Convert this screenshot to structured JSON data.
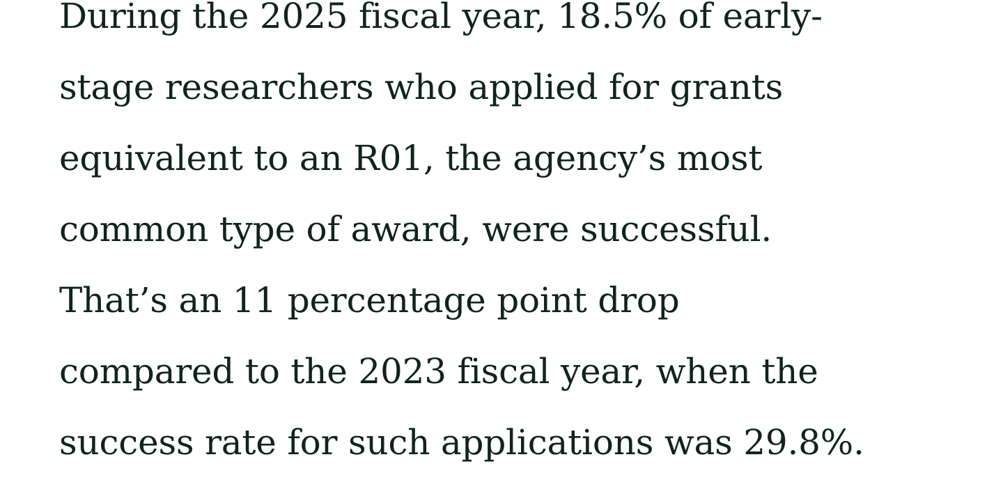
{
  "page": {
    "background_color": "#ffffff",
    "text_color": "#0f241e"
  },
  "article": {
    "paragraph_lines": [
      "During the 2025 fiscal year, 18.5% of early-",
      "stage researchers who applied for grants",
      "equivalent to an R01, the agency’s most",
      "common type of award, were successful.",
      "That’s an 11 percentage point drop",
      "compared to the 2023 fiscal year, when the",
      "success rate for such applications was 29.8%."
    ]
  }
}
